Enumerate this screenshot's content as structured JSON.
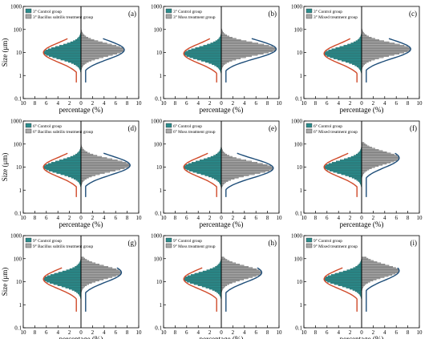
{
  "figure": {
    "ylabel": "Size (μm)",
    "xlabel": "percentage (%)",
    "y_ticks": [
      "1000",
      "100",
      "10",
      "1",
      "0.1"
    ],
    "x_ticks": [
      "10",
      "8",
      "6",
      "4",
      "2",
      "0",
      "2",
      "4",
      "6",
      "8",
      "10"
    ],
    "colors": {
      "control": "#2a8c8c",
      "treatment": "#a9a9a9",
      "left_fit": "#d04a2a",
      "right_fit": "#1f4e79"
    }
  },
  "chart_data": [
    {
      "panel": "(a)",
      "type": "bar",
      "orientation": "horizontal-mirrored",
      "legend": [
        "3° Control group",
        "3° Bacillus subtilis treatment group"
      ],
      "ylim": [
        0.1,
        1000
      ],
      "yscale": "log",
      "xlim": [
        -10,
        10
      ],
      "xlabel": "percentage (%)",
      "ylabel": "Size (μm)",
      "series": [
        {
          "name": "3° Control group",
          "side": "left",
          "peak_size": 10,
          "peak_percent": 6.5
        },
        {
          "name": "3° Bacillus subtilis treatment group",
          "side": "right",
          "peak_size": 13,
          "peak_percent": 7.5
        }
      ]
    },
    {
      "panel": "(b)",
      "type": "bar",
      "orientation": "horizontal-mirrored",
      "legend": [
        "3° Control group",
        "3° Moss treatment group"
      ],
      "ylim": [
        0.1,
        1000
      ],
      "yscale": "log",
      "xlim": [
        -10,
        10
      ],
      "xlabel": "percentage (%)",
      "series": [
        {
          "name": "3° Control group",
          "side": "left",
          "peak_size": 9,
          "peak_percent": 6.5
        },
        {
          "name": "3° Moss treatment group",
          "side": "right",
          "peak_size": 14,
          "peak_percent": 9.5
        }
      ]
    },
    {
      "panel": "(c)",
      "type": "bar",
      "orientation": "horizontal-mirrored",
      "legend": [
        "3° Control group",
        "3° Mixed treatment group"
      ],
      "ylim": [
        0.1,
        1000
      ],
      "yscale": "log",
      "xlim": [
        -10,
        10
      ],
      "xlabel": "percentage (%)",
      "series": [
        {
          "name": "3° Control group",
          "side": "left",
          "peak_size": 9,
          "peak_percent": 6.5
        },
        {
          "name": "3° Mixed treatment group",
          "side": "right",
          "peak_size": 14,
          "peak_percent": 8.5
        }
      ]
    },
    {
      "panel": "(d)",
      "type": "bar",
      "orientation": "horizontal-mirrored",
      "legend": [
        "6° Control group",
        "6° Bacillus subtilis treatment group"
      ],
      "ylim": [
        0.1,
        1000
      ],
      "yscale": "log",
      "xlim": [
        -10,
        10
      ],
      "xlabel": "percentage (%)",
      "ylabel": "Size (μm)",
      "series": [
        {
          "name": "6° Control group",
          "side": "left",
          "peak_size": 10,
          "peak_percent": 6.5
        },
        {
          "name": "6° Bacillus subtilis treatment group",
          "side": "right",
          "peak_size": 12,
          "peak_percent": 8.5
        }
      ]
    },
    {
      "panel": "(e)",
      "type": "bar",
      "orientation": "horizontal-mirrored",
      "legend": [
        "6° Control group",
        "6° Moss treatment group"
      ],
      "ylim": [
        0.1,
        1000
      ],
      "yscale": "log",
      "xlim": [
        -10,
        10
      ],
      "xlabel": "percentage (%)",
      "series": [
        {
          "name": "6° Control group",
          "side": "left",
          "peak_size": 10,
          "peak_percent": 6.5
        },
        {
          "name": "6° Moss treatment group",
          "side": "right",
          "peak_size": 9,
          "peak_percent": 9
        }
      ]
    },
    {
      "panel": "(f)",
      "type": "bar",
      "orientation": "horizontal-mirrored",
      "legend": [
        "6° Control group",
        "6° Mixed treatment group"
      ],
      "ylim": [
        0.1,
        1000
      ],
      "yscale": "log",
      "xlim": [
        -10,
        10
      ],
      "xlabel": "percentage (%)",
      "series": [
        {
          "name": "6° Control group",
          "side": "left",
          "peak_size": 10,
          "peak_percent": 6.5
        },
        {
          "name": "6° Mixed treatment group",
          "side": "right",
          "peak_size": 25,
          "peak_percent": 6.5
        }
      ]
    },
    {
      "panel": "(g)",
      "type": "bar",
      "orientation": "horizontal-mirrored",
      "legend": [
        "9° Control group",
        "9° Bacillus subtilis treatment group"
      ],
      "ylim": [
        0.1,
        1000
      ],
      "yscale": "log",
      "xlim": [
        -10,
        10
      ],
      "xlabel": "percentage (%)",
      "ylabel": "Size (μm)",
      "series": [
        {
          "name": "9° Control group",
          "side": "left",
          "peak_size": 13,
          "peak_percent": 6.5
        },
        {
          "name": "9° Bacillus subtilis treatment group",
          "side": "right",
          "peak_size": 25,
          "peak_percent": 7
        }
      ]
    },
    {
      "panel": "(h)",
      "type": "bar",
      "orientation": "horizontal-mirrored",
      "legend": [
        "9° Control group",
        "9° Moss treatment group"
      ],
      "ylim": [
        0.1,
        1000
      ],
      "yscale": "log",
      "xlim": [
        -10,
        10
      ],
      "xlabel": "percentage (%)",
      "series": [
        {
          "name": "9° Control group",
          "side": "left",
          "peak_size": 13,
          "peak_percent": 6.5
        },
        {
          "name": "9° Moss treatment group",
          "side": "right",
          "peak_size": 25,
          "peak_percent": 7
        }
      ]
    },
    {
      "panel": "(i)",
      "type": "bar",
      "orientation": "horizontal-mirrored",
      "legend": [
        "9° Control group",
        "9° Mixed treatment group"
      ],
      "ylim": [
        0.1,
        1000
      ],
      "yscale": "log",
      "xlim": [
        -10,
        10
      ],
      "xlabel": "percentage (%)",
      "series": [
        {
          "name": "9° Control group",
          "side": "left",
          "peak_size": 13,
          "peak_percent": 6.5
        },
        {
          "name": "9° Mixed treatment group",
          "side": "right",
          "peak_size": 30,
          "peak_percent": 6.5
        }
      ]
    }
  ]
}
